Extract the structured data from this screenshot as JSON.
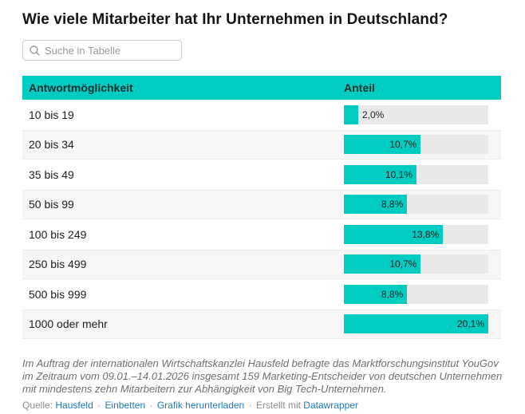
{
  "title": {
    "text": "Wie viele Mitarbeiter hat Ihr Unternehmen in Deutschland?"
  },
  "search": {
    "placeholder": "Suche in Tabelle"
  },
  "table": {
    "columns": [
      "Antwortmöglichkeit",
      "Anteil"
    ]
  },
  "chart_data": {
    "type": "bar",
    "orientation": "horizontal",
    "title": "Wie viele Mitarbeiter hat Ihr Unternehmen in Deutschland?",
    "categories": [
      "10 bis 19",
      "20 bis 34",
      "35 bis 49",
      "50 bis 99",
      "100 bis 249",
      "250 bis 499",
      "500 bis 999",
      "1000 oder mehr"
    ],
    "values": [
      2.0,
      10.7,
      10.1,
      8.8,
      13.8,
      10.7,
      8.8,
      20.1
    ],
    "value_labels": [
      "2,0%",
      "10,7%",
      "10,1%",
      "8,8%",
      "13,8%",
      "10,7%",
      "8,8%",
      "20,1%"
    ],
    "xlabel": "Anteil",
    "ylabel": "Antwortmöglichkeit",
    "xlim": [
      0,
      20.1
    ],
    "unit": "%",
    "grid": false,
    "legend": false
  },
  "footnote": "Im Auftrag der internationalen Wirtschaftskanzlei Hausfeld befragte das Marktforschungsinstitut YouGov im Zeitraum vom 09.01.–14.01.2026 insgesamt 159 Marketing-Entscheider von deutschen Unternehmen mit mindestens zehn Mitarbeitern zur Abhängigkeit von Big Tech-Unternehmen.",
  "source": {
    "prefix": "Quelle:",
    "source_link": "Hausfeld",
    "sep": "·",
    "embed_link": "Einbetten",
    "download_link": "Grafik herunterladen",
    "created_with": "Erstellt mit",
    "creator_link": "Datawrapper"
  },
  "colors": {
    "accent": "#00ccc1",
    "bar_track": "#e9e9e9",
    "row_stripe": "#f6f6f6",
    "link": "#2277b8",
    "header_text": "#13302e"
  }
}
